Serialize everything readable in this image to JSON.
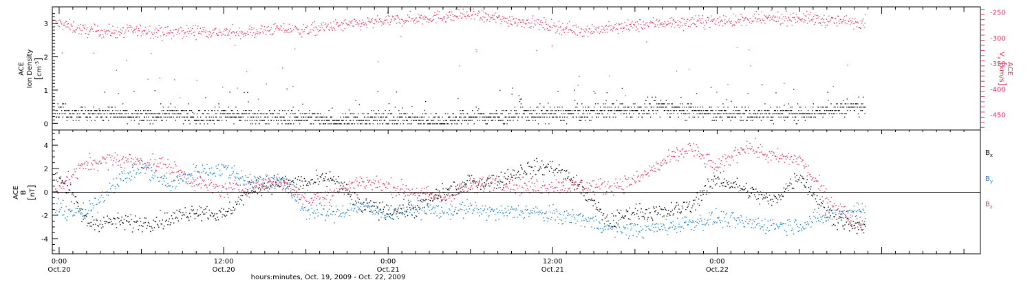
{
  "chart_data": [
    {
      "type": "scatter",
      "panel": "top",
      "left_axis": {
        "label_lines": [
          "ACE",
          "Ion Density"
        ],
        "units": "cm",
        "units_exp": "-3",
        "ylim": [
          -0.2,
          3.5
        ],
        "ticks": [
          "0",
          "1",
          "2",
          "3"
        ]
      },
      "right_axis": {
        "label_main": "V",
        "label_sub": "x",
        "label_sup": "ACE",
        "units": "km/s",
        "ylim": [
          -480,
          -240
        ],
        "ticks": [
          "-250",
          "-300",
          "-350",
          "-400",
          "-450"
        ]
      },
      "series": [
        {
          "name": "Ion Density",
          "axis": "left",
          "x_hours": [
            0,
            2,
            4,
            6,
            8,
            10,
            12,
            14,
            16,
            18,
            20,
            22,
            24,
            26,
            28,
            30,
            32,
            34,
            36,
            38,
            40,
            42,
            44,
            46,
            48,
            50,
            52,
            54,
            56,
            58
          ],
          "values": [
            0.4,
            0.3,
            0.3,
            0.2,
            0.3,
            0.2,
            0.3,
            0.2,
            0.2,
            0.2,
            0.1,
            0.1,
            0.2,
            0.1,
            0.1,
            0.2,
            0.2,
            0.3,
            0.3,
            0.3,
            0.4,
            0.4,
            0.5,
            0.4,
            0.3,
            0.3,
            0.3,
            0.3,
            0.4,
            0.5
          ]
        },
        {
          "name": "Vx",
          "axis": "right",
          "x_hours": [
            0,
            2,
            4,
            6,
            8,
            10,
            12,
            14,
            16,
            18,
            20,
            22,
            24,
            26,
            28,
            30,
            32,
            34,
            36,
            38,
            40,
            42,
            44,
            46,
            48,
            50,
            52,
            54,
            56,
            58
          ],
          "values": [
            -272,
            -286,
            -288,
            -285,
            -290,
            -285,
            -290,
            -288,
            -282,
            -285,
            -277,
            -272,
            -266,
            -262,
            -258,
            -255,
            -263,
            -268,
            -277,
            -285,
            -282,
            -276,
            -270,
            -270,
            -266,
            -266,
            -262,
            -260,
            -266,
            -268
          ]
        }
      ]
    },
    {
      "type": "scatter",
      "panel": "bottom",
      "left_axis": {
        "label_top": "ACE",
        "label_main": "B",
        "units": "nT",
        "ylim": [
          -5.3,
          5.3
        ],
        "ticks": [
          "4",
          "2",
          "0",
          "-2",
          "-4"
        ]
      },
      "legend": [
        {
          "main": "B",
          "sub": "x",
          "color": "#000000"
        },
        {
          "main": "B",
          "sub": "y",
          "color": "#1a7fd0"
        },
        {
          "main": "B",
          "sub": "z",
          "color": "#e0325a"
        }
      ],
      "series": [
        {
          "name": "Bx",
          "color": "#000000",
          "x_hours": [
            0,
            2,
            4,
            6,
            8,
            10,
            12,
            14,
            16,
            18,
            20,
            22,
            24,
            26,
            28,
            30,
            32,
            34,
            36,
            38,
            40,
            42,
            44,
            46,
            48,
            50,
            52,
            54,
            56,
            58
          ],
          "values": [
            1.5,
            -2.6,
            -2.5,
            -2.6,
            -2.3,
            -1.5,
            -2.0,
            0.3,
            0.8,
            0.8,
            1.2,
            -1.2,
            -1.6,
            -1.4,
            0.0,
            0.8,
            1.0,
            2.0,
            2.2,
            0.5,
            -2.6,
            -1.6,
            -1.8,
            -1.2,
            1.2,
            0.2,
            -0.8,
            1.5,
            -1.8,
            -3.0
          ]
        },
        {
          "name": "By",
          "color": "#1a7fd0",
          "x_hours": [
            0,
            2,
            4,
            6,
            8,
            10,
            12,
            14,
            16,
            18,
            20,
            22,
            24,
            26,
            28,
            30,
            32,
            34,
            36,
            38,
            40,
            42,
            44,
            46,
            48,
            50,
            52,
            54,
            56,
            58
          ],
          "values": [
            -1.5,
            -1.8,
            0.8,
            2.2,
            0.6,
            1.8,
            2.0,
            1.0,
            1.2,
            -1.6,
            -1.8,
            -1.2,
            -1.8,
            -1.4,
            -1.6,
            -1.4,
            -1.8,
            -1.6,
            -2.0,
            -2.2,
            -3.0,
            -3.2,
            -3.0,
            -2.6,
            -2.2,
            -2.6,
            -2.8,
            -2.8,
            -2.0,
            -1.5
          ]
        },
        {
          "name": "Bz",
          "color": "#e0325a",
          "x_hours": [
            0,
            2,
            4,
            6,
            8,
            10,
            12,
            14,
            16,
            18,
            20,
            22,
            24,
            26,
            28,
            30,
            32,
            34,
            36,
            38,
            40,
            42,
            44,
            46,
            48,
            50,
            52,
            54,
            56,
            58
          ],
          "values": [
            0.5,
            2.5,
            2.8,
            2.6,
            2.2,
            0.8,
            0.2,
            0.5,
            1.0,
            -0.6,
            0.0,
            1.0,
            0.5,
            0.0,
            -0.5,
            0.5,
            1.0,
            0.4,
            0.6,
            0.5,
            0.5,
            1.0,
            2.5,
            3.8,
            2.0,
            4.0,
            3.0,
            2.8,
            -0.5,
            -2.5
          ]
        }
      ]
    }
  ],
  "x_axis": {
    "xlim_hours": [
      -0.5,
      67.2
    ],
    "major_ticks": [
      {
        "hour": 0,
        "time": "0:00",
        "date": "Oct.20"
      },
      {
        "hour": 12,
        "time": "12:00",
        "date": "Oct.20"
      },
      {
        "hour": 24,
        "time": "0:00",
        "date": "Oct.21"
      },
      {
        "hour": 36,
        "time": "12:00",
        "date": "Oct.21"
      },
      {
        "hour": 48,
        "time": "0:00",
        "date": "Oct.22"
      }
    ],
    "title": "hours:minutes, Oct. 19, 2009 - Oct. 22, 2009"
  },
  "colors": {
    "black": "#000000",
    "blue": "#1a7fd0",
    "red": "#e0325a"
  }
}
